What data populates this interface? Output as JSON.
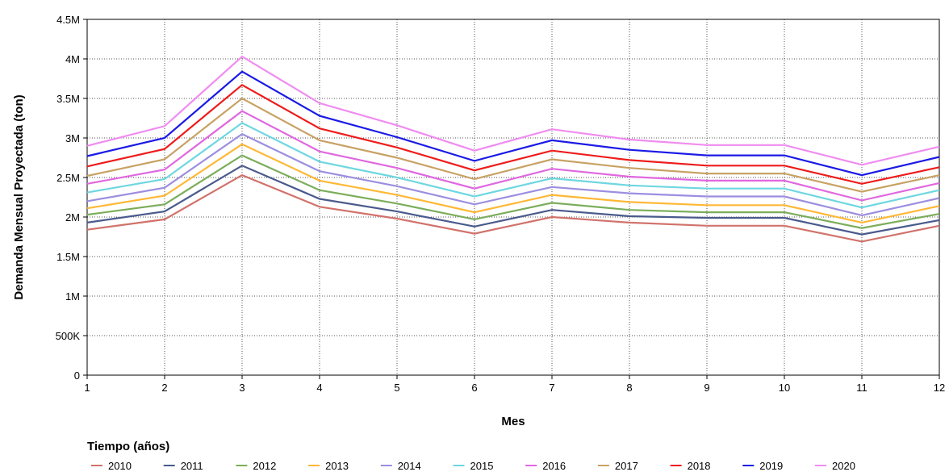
{
  "chart_data": {
    "type": "line",
    "title": "",
    "xlabel": "Mes",
    "ylabel": "Demanda Mensual Proyectada (ton)",
    "x": [
      1,
      2,
      3,
      4,
      5,
      6,
      7,
      8,
      9,
      10,
      11,
      12
    ],
    "xticks": [
      "1",
      "2",
      "3",
      "4",
      "5",
      "6",
      "7",
      "8",
      "9",
      "10",
      "11",
      "12"
    ],
    "xlim": [
      1,
      12
    ],
    "ylim": [
      0,
      4500000
    ],
    "yticks": [
      0,
      500000,
      1000000,
      1500000,
      2000000,
      2500000,
      3000000,
      3500000,
      4000000,
      4500000
    ],
    "ytick_labels": [
      "0",
      "500K",
      "1M",
      "1.5M",
      "2M",
      "2.5M",
      "3M",
      "3.5M",
      "4M",
      "4.5M"
    ],
    "grid": true,
    "legend_title": "Tiempo (años)",
    "legend_position": "bottom",
    "series": [
      {
        "name": "2010",
        "color": "#d1726b",
        "values": [
          1840000,
          1970000,
          2530000,
          2130000,
          1980000,
          1790000,
          2000000,
          1930000,
          1890000,
          1890000,
          1690000,
          1890000
        ]
      },
      {
        "name": "2011",
        "color": "#4a5a8c",
        "values": [
          1930000,
          2070000,
          2650000,
          2230000,
          2070000,
          1880000,
          2090000,
          2010000,
          1990000,
          1990000,
          1780000,
          1960000
        ]
      },
      {
        "name": "2012",
        "color": "#7bad5b",
        "values": [
          2030000,
          2160000,
          2780000,
          2340000,
          2170000,
          1970000,
          2180000,
          2090000,
          2060000,
          2060000,
          1860000,
          2040000
        ]
      },
      {
        "name": "2013",
        "color": "#ffb836",
        "values": [
          2110000,
          2270000,
          2920000,
          2460000,
          2280000,
          2060000,
          2280000,
          2190000,
          2150000,
          2150000,
          1930000,
          2140000
        ]
      },
      {
        "name": "2014",
        "color": "#9c8ee0",
        "values": [
          2200000,
          2370000,
          3050000,
          2580000,
          2390000,
          2160000,
          2380000,
          2300000,
          2260000,
          2260000,
          2020000,
          2240000
        ]
      },
      {
        "name": "2015",
        "color": "#6ed7e0",
        "values": [
          2310000,
          2480000,
          3190000,
          2700000,
          2500000,
          2260000,
          2490000,
          2400000,
          2360000,
          2360000,
          2120000,
          2340000
        ]
      },
      {
        "name": "2016",
        "color": "#e068e0",
        "values": [
          2420000,
          2600000,
          3340000,
          2830000,
          2620000,
          2360000,
          2610000,
          2510000,
          2460000,
          2460000,
          2210000,
          2430000
        ]
      },
      {
        "name": "2017",
        "color": "#c8a264",
        "values": [
          2520000,
          2730000,
          3500000,
          2970000,
          2750000,
          2480000,
          2730000,
          2620000,
          2550000,
          2550000,
          2320000,
          2530000
        ]
      },
      {
        "name": "2018",
        "color": "#ee1c1c",
        "values": [
          2640000,
          2860000,
          3670000,
          3120000,
          2880000,
          2590000,
          2840000,
          2720000,
          2650000,
          2650000,
          2420000,
          2630000
        ]
      },
      {
        "name": "2019",
        "color": "#1a1ae6",
        "values": [
          2770000,
          3000000,
          3840000,
          3280000,
          3010000,
          2710000,
          2970000,
          2850000,
          2780000,
          2780000,
          2530000,
          2760000
        ]
      },
      {
        "name": "2020",
        "color": "#f08cf0",
        "values": [
          2900000,
          3150000,
          4030000,
          3440000,
          3160000,
          2840000,
          3110000,
          2980000,
          2910000,
          2910000,
          2660000,
          2890000
        ]
      }
    ]
  }
}
